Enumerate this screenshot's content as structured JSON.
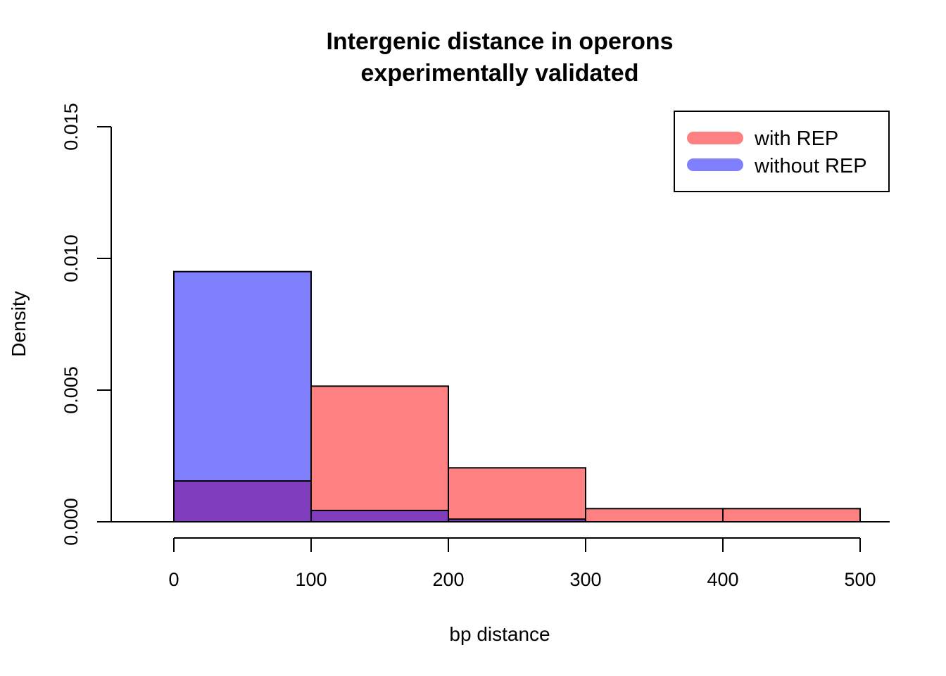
{
  "chart_data": {
    "type": "bar",
    "title": [
      "Intergenic distance in operons",
      "experimentally validated"
    ],
    "xlabel": "bp distance",
    "ylabel": "Density",
    "xlim": [
      0,
      500
    ],
    "ylim": [
      0,
      0.015
    ],
    "x_ticks": [
      "0",
      "100",
      "200",
      "300",
      "400",
      "500"
    ],
    "y_ticks": [
      "0.000",
      "0.005",
      "0.010",
      "0.015"
    ],
    "bins": [
      [
        0,
        100
      ],
      [
        100,
        200
      ],
      [
        200,
        300
      ],
      [
        300,
        400
      ],
      [
        400,
        500
      ]
    ],
    "series": [
      {
        "name": "with REP",
        "color": "#ff8080",
        "values": [
          0.00155,
          0.00515,
          0.00205,
          0.0005,
          0.0005
        ]
      },
      {
        "name": "without REP",
        "color": "#8080ff",
        "values": [
          0.0095,
          0.00043,
          0.0001,
          0,
          0
        ]
      }
    ],
    "overlap_color": "#803ebe",
    "legend_position": "top-right",
    "grid": false
  }
}
